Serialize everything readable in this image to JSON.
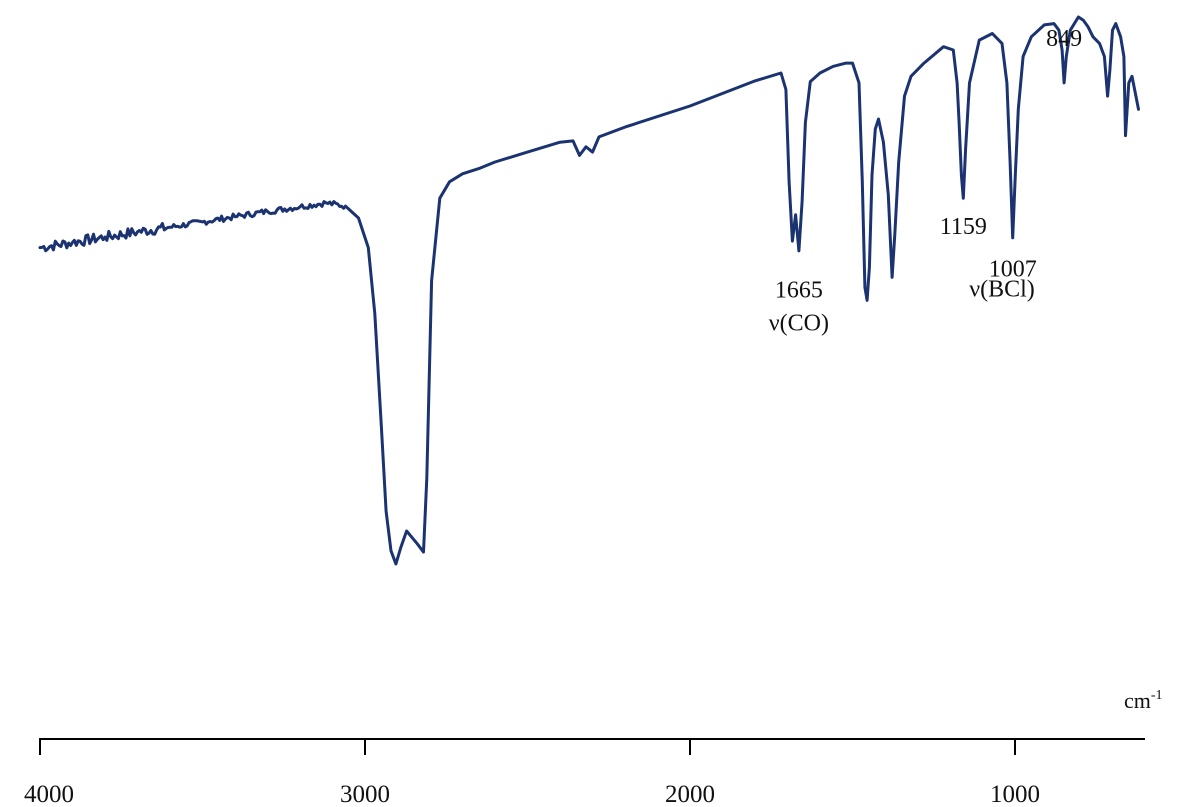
{
  "chart_data": {
    "type": "line",
    "title": "",
    "xlabel": "",
    "ylabel": "",
    "x_unit": "cm",
    "x_unit_exponent": "-1",
    "xlim": [
      4000,
      600
    ],
    "x_reversed": true,
    "ylim": [
      0,
      100
    ],
    "grid": false,
    "y_axis_visible": false,
    "x_ticks": [
      {
        "value": 4000,
        "label": "4000"
      },
      {
        "value": 3000,
        "label": "3000"
      },
      {
        "value": 2000,
        "label": "2000"
      },
      {
        "value": 1000,
        "label": "1000"
      }
    ],
    "series": [
      {
        "color": "#1b3370",
        "x": [
          4000,
          3900,
          3800,
          3700,
          3600,
          3500,
          3400,
          3300,
          3200,
          3120,
          3060,
          3020,
          2990,
          2970,
          2950,
          2935,
          2920,
          2905,
          2890,
          2872,
          2855,
          2838,
          2820,
          2810,
          2795,
          2770,
          2740,
          2700,
          2650,
          2600,
          2500,
          2400,
          2360,
          2340,
          2320,
          2300,
          2280,
          2200,
          2000,
          1800,
          1720,
          1705,
          1695,
          1685,
          1675,
          1665,
          1655,
          1645,
          1630,
          1600,
          1560,
          1520,
          1500,
          1480,
          1470,
          1462,
          1455,
          1448,
          1440,
          1430,
          1420,
          1405,
          1390,
          1378,
          1370,
          1358,
          1340,
          1320,
          1280,
          1220,
          1190,
          1178,
          1172,
          1165,
          1159,
          1152,
          1140,
          1110,
          1070,
          1040,
          1025,
          1015,
          1007,
          999,
          990,
          975,
          950,
          910,
          880,
          865,
          855,
          849,
          842,
          830,
          805,
          790,
          775,
          760,
          740,
          725,
          715,
          708,
          700,
          690,
          675,
          665,
          660,
          650,
          640,
          620
        ],
        "y": [
          65.0,
          65.8,
          66.6,
          67.4,
          68.1,
          68.9,
          69.7,
          70.5,
          71.2,
          71.8,
          71.3,
          69.5,
          65.0,
          55.0,
          38.0,
          25.0,
          19.0,
          17.0,
          19.5,
          22.0,
          21.0,
          20.0,
          18.8,
          30.0,
          60.0,
          72.5,
          75.0,
          76.2,
          77.0,
          78.0,
          79.5,
          81.0,
          81.2,
          79.0,
          80.3,
          79.5,
          81.8,
          83.3,
          86.5,
          90.3,
          91.5,
          89.0,
          75.0,
          66.0,
          70.0,
          64.5,
          72.0,
          84.0,
          90.2,
          91.5,
          92.5,
          93.0,
          93.0,
          90.0,
          75.0,
          59.0,
          57.0,
          62.0,
          76.0,
          83.0,
          84.5,
          81.0,
          73.0,
          60.5,
          67.0,
          78.0,
          88.0,
          91.0,
          93.0,
          95.5,
          95.0,
          90.0,
          84.0,
          76.0,
          72.5,
          80.0,
          90.0,
          96.5,
          97.5,
          96.0,
          90.0,
          78.0,
          66.5,
          76.0,
          86.0,
          94.0,
          97.0,
          98.8,
          99.0,
          98.0,
          95.0,
          90.0,
          94.0,
          98.0,
          100.0,
          99.5,
          98.5,
          97.0,
          96.0,
          94.0,
          88.0,
          92.0,
          98.0,
          99.0,
          97.0,
          94.0,
          82.0,
          90.0,
          91.0,
          86.0
        ]
      }
    ],
    "annotations": [
      {
        "x": 1665,
        "y": 57.4,
        "text": "1665"
      },
      {
        "x": 1665,
        "y": 52.4,
        "text": "ν(CO)"
      },
      {
        "x": 1159,
        "y": 67.1,
        "text": "1159"
      },
      {
        "x": 1007,
        "y": 60.6,
        "text": "1007"
      },
      {
        "x": 1040,
        "y": 57.6,
        "text": "ν(BCl)"
      },
      {
        "x": 849,
        "y": 95.6,
        "text": "849"
      }
    ]
  }
}
